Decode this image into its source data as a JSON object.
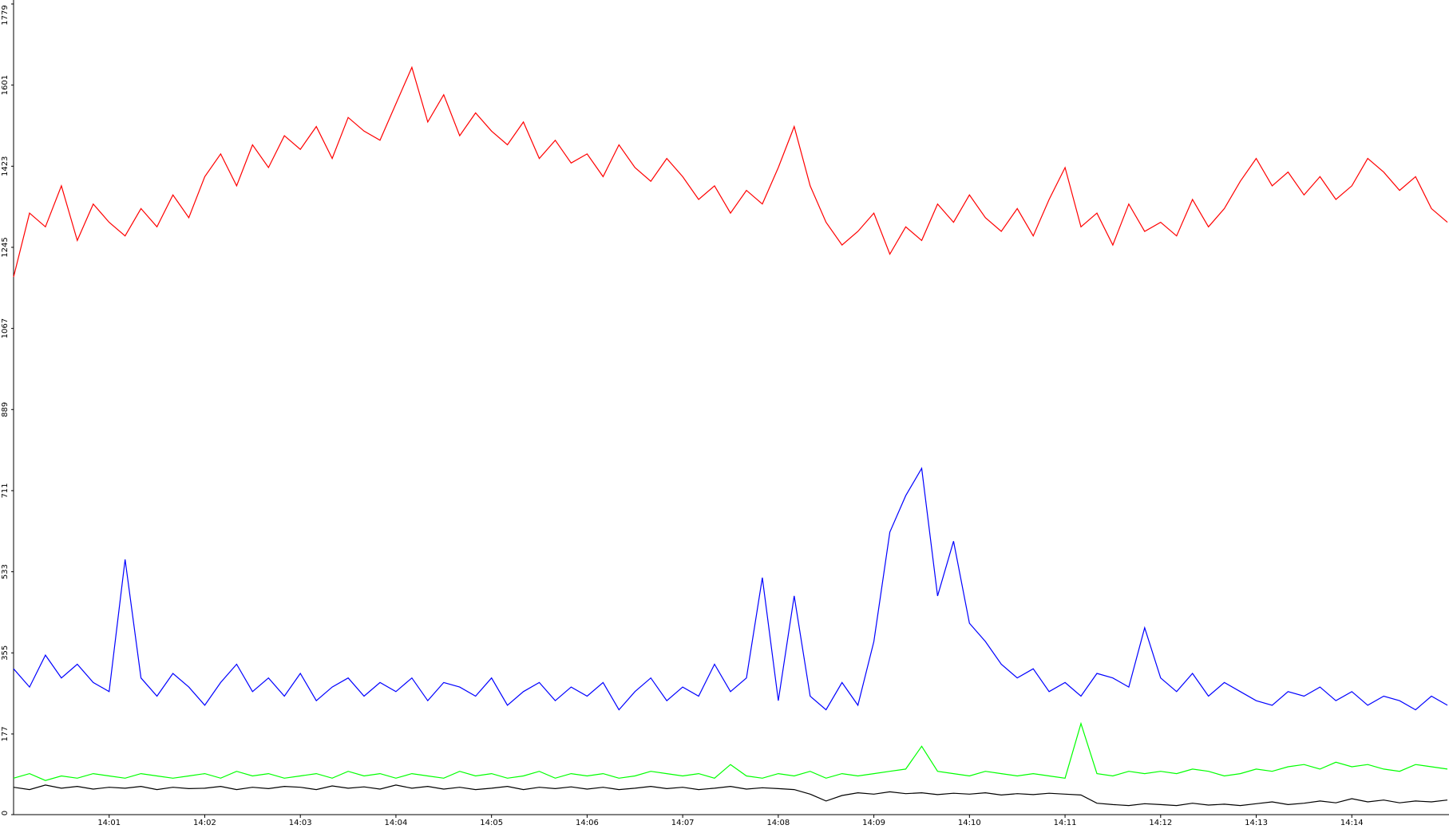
{
  "chart_data": {
    "type": "line",
    "categories": [
      null,
      null,
      null,
      null,
      null,
      null,
      "14:01",
      null,
      null,
      null,
      null,
      null,
      "14:02",
      null,
      null,
      null,
      null,
      null,
      "14:03",
      null,
      null,
      null,
      null,
      null,
      "14:04",
      null,
      null,
      null,
      null,
      null,
      "14:05",
      null,
      null,
      null,
      null,
      null,
      "14:06",
      null,
      null,
      null,
      null,
      null,
      "14:07",
      null,
      null,
      null,
      null,
      null,
      "14:08",
      null,
      null,
      null,
      null,
      null,
      "14:09",
      null,
      null,
      null,
      null,
      null,
      "14:10",
      null,
      null,
      null,
      null,
      null,
      "14:11",
      null,
      null,
      null,
      null,
      null,
      "14:12",
      null,
      null,
      null,
      null,
      null,
      "14:13",
      null,
      null,
      null,
      null,
      null,
      "14:14",
      null,
      null,
      null,
      null,
      null,
      null
    ],
    "series": [
      {
        "color": "#ff0000",
        "values": [
          1180,
          1320,
          1290,
          1380,
          1260,
          1340,
          1300,
          1270,
          1330,
          1290,
          1360,
          1310,
          1400,
          1450,
          1380,
          1470,
          1420,
          1490,
          1460,
          1510,
          1440,
          1530,
          1500,
          1480,
          1560,
          1640,
          1520,
          1580,
          1490,
          1540,
          1500,
          1470,
          1520,
          1440,
          1480,
          1430,
          1450,
          1400,
          1470,
          1420,
          1390,
          1440,
          1400,
          1350,
          1380,
          1320,
          1370,
          1340,
          1420,
          1510,
          1380,
          1300,
          1250,
          1280,
          1320,
          1230,
          1290,
          1260,
          1340,
          1300,
          1360,
          1310,
          1280,
          1330,
          1270,
          1350,
          1420,
          1290,
          1320,
          1250,
          1340,
          1280,
          1300,
          1270,
          1350,
          1290,
          1330,
          1390,
          1440,
          1380,
          1410,
          1360,
          1400,
          1350,
          1380,
          1440,
          1410,
          1370,
          1400,
          1330,
          1300
        ]
      },
      {
        "color": "#0000ff",
        "values": [
          320,
          280,
          350,
          300,
          330,
          290,
          270,
          560,
          300,
          260,
          310,
          280,
          240,
          290,
          330,
          270,
          300,
          260,
          310,
          250,
          280,
          300,
          260,
          290,
          270,
          300,
          250,
          290,
          280,
          260,
          300,
          240,
          270,
          290,
          250,
          280,
          260,
          290,
          230,
          270,
          300,
          250,
          280,
          260,
          330,
          270,
          300,
          520,
          250,
          480,
          260,
          230,
          290,
          240,
          380,
          620,
          700,
          760,
          480,
          600,
          420,
          380,
          330,
          300,
          320,
          270,
          290,
          260,
          310,
          300,
          280,
          410,
          300,
          270,
          310,
          260,
          290,
          270,
          250,
          240,
          270,
          260,
          280,
          250,
          270,
          240,
          260,
          250,
          230,
          260,
          240
        ]
      },
      {
        "color": "#00ff00",
        "values": [
          80,
          90,
          75,
          85,
          80,
          90,
          85,
          80,
          90,
          85,
          80,
          85,
          90,
          80,
          95,
          85,
          90,
          80,
          85,
          90,
          80,
          95,
          85,
          90,
          80,
          90,
          85,
          80,
          95,
          85,
          90,
          80,
          85,
          95,
          80,
          90,
          85,
          90,
          80,
          85,
          95,
          90,
          85,
          90,
          80,
          110,
          85,
          80,
          90,
          85,
          95,
          80,
          90,
          85,
          90,
          95,
          100,
          150,
          95,
          90,
          85,
          95,
          90,
          85,
          90,
          85,
          80,
          200,
          90,
          85,
          95,
          90,
          95,
          90,
          100,
          95,
          85,
          90,
          100,
          95,
          105,
          110,
          100,
          115,
          105,
          110,
          100,
          95,
          110,
          105,
          100
        ]
      },
      {
        "color": "#000000",
        "values": [
          60,
          55,
          65,
          58,
          62,
          56,
          60,
          58,
          62,
          55,
          60,
          57,
          58,
          62,
          55,
          60,
          57,
          62,
          60,
          55,
          63,
          58,
          61,
          56,
          65,
          58,
          62,
          56,
          60,
          55,
          58,
          62,
          55,
          60,
          57,
          61,
          56,
          60,
          55,
          58,
          62,
          57,
          60,
          55,
          58,
          62,
          56,
          59,
          57,
          55,
          45,
          30,
          42,
          48,
          45,
          50,
          46,
          48,
          44,
          47,
          45,
          48,
          43,
          46,
          44,
          47,
          45,
          43,
          25,
          22,
          20,
          24,
          22,
          20,
          25,
          21,
          23,
          20,
          24,
          28,
          22,
          25,
          30,
          26,
          35,
          28,
          32,
          26,
          30,
          28,
          32
        ]
      }
    ],
    "ylim": [
      0,
      1779
    ],
    "yticks": [
      0,
      177,
      355,
      533,
      711,
      889,
      1067,
      1245,
      1423,
      1601,
      1779
    ]
  }
}
